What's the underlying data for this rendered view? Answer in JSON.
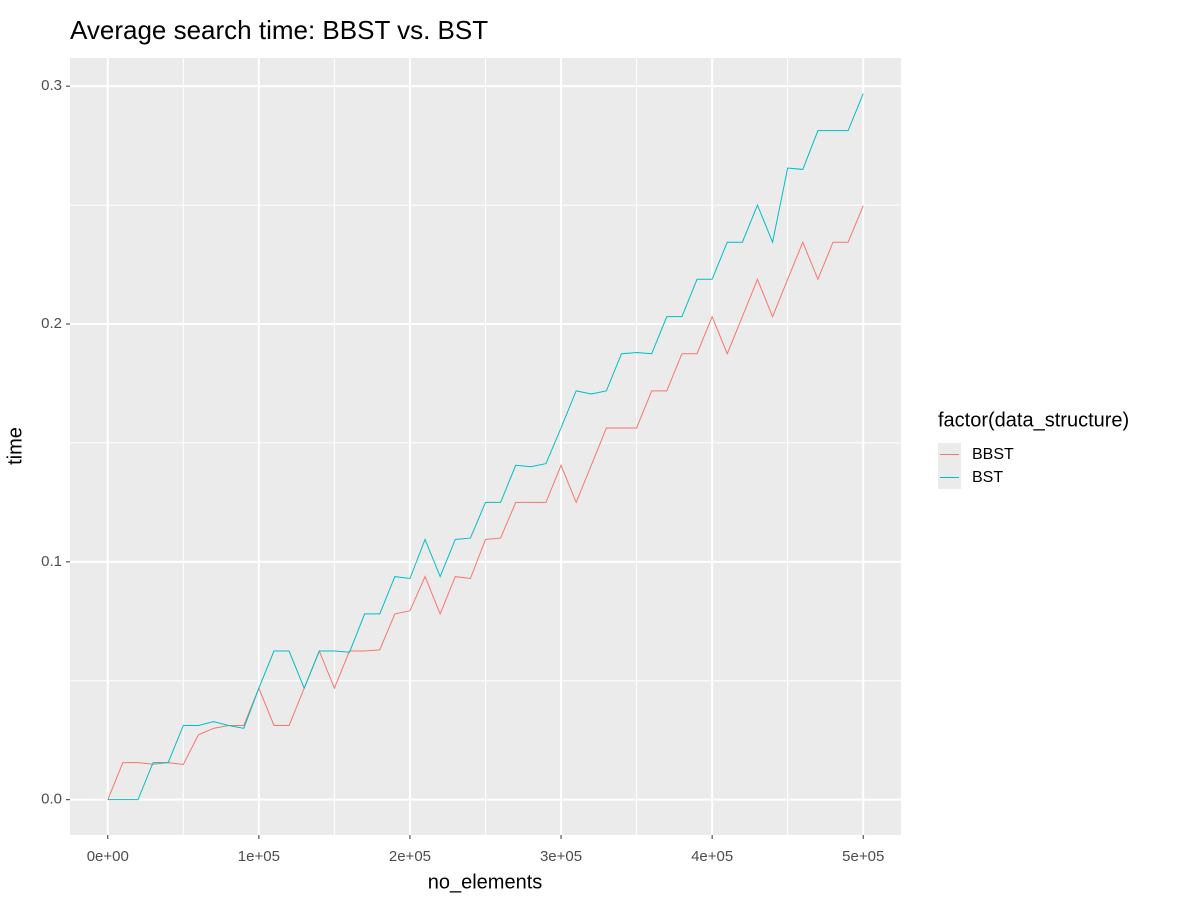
{
  "chart_data": {
    "type": "line",
    "title": "Average search time: BBST vs. BST",
    "x_label": "no_elements",
    "y_label": "time",
    "legend_title": "factor(data_structure)",
    "x": [
      0,
      10000,
      20000,
      30000,
      40000,
      50000,
      60000,
      70000,
      80000,
      90000,
      100000,
      110000,
      120000,
      130000,
      140000,
      150000,
      160000,
      170000,
      180000,
      190000,
      200000,
      210000,
      220000,
      230000,
      240000,
      250000,
      260000,
      270000,
      280000,
      290000,
      300000,
      310000,
      320000,
      330000,
      340000,
      350000,
      360000,
      370000,
      380000,
      390000,
      400000,
      410000,
      420000,
      430000,
      440000,
      450000,
      460000,
      470000,
      480000,
      490000,
      500000
    ],
    "series": [
      {
        "name": "BBST",
        "color": "#f8766d",
        "values": [
          0,
          0.0156,
          0.0156,
          0.0149,
          0.0156,
          0.0148,
          0.0273,
          0.03,
          0.0312,
          0.0312,
          0.0469,
          0.0312,
          0.0312,
          0.0469,
          0.0625,
          0.0469,
          0.0625,
          0.0625,
          0.063,
          0.0781,
          0.0794,
          0.0938,
          0.0781,
          0.0938,
          0.093,
          0.1094,
          0.11,
          0.125,
          0.125,
          0.125,
          0.1406,
          0.125,
          0.1406,
          0.1563,
          0.1563,
          0.1563,
          0.1719,
          0.1719,
          0.1875,
          0.1875,
          0.2031,
          0.1875,
          0.2031,
          0.2188,
          0.2031,
          0.2188,
          0.2344,
          0.2188,
          0.2344,
          0.2344,
          0.2497
        ]
      },
      {
        "name": "BST",
        "color": "#00bfc4",
        "values": [
          0,
          0,
          0,
          0.0156,
          0.0156,
          0.0312,
          0.0312,
          0.0328,
          0.0312,
          0.03,
          0.0469,
          0.0625,
          0.0625,
          0.0469,
          0.0625,
          0.0625,
          0.062,
          0.0781,
          0.0781,
          0.0938,
          0.093,
          0.1094,
          0.0938,
          0.1094,
          0.11,
          0.125,
          0.125,
          0.1406,
          0.14,
          0.1413,
          0.1563,
          0.1719,
          0.1706,
          0.1719,
          0.1875,
          0.188,
          0.1875,
          0.2031,
          0.2031,
          0.2188,
          0.2188,
          0.2344,
          0.2344,
          0.25,
          0.2344,
          0.2656,
          0.265,
          0.2813,
          0.2813,
          0.2813,
          0.2969
        ]
      }
    ],
    "xlim": [
      -25000,
      525000
    ],
    "xticks": [
      {
        "value": 0,
        "label": "0e+00"
      },
      {
        "value": 100000,
        "label": "1e+05"
      },
      {
        "value": 200000,
        "label": "2e+05"
      },
      {
        "value": 300000,
        "label": "3e+05"
      },
      {
        "value": 400000,
        "label": "4e+05"
      },
      {
        "value": 500000,
        "label": "5e+05"
      }
    ],
    "x_minor_ticks": [
      50000,
      150000,
      250000,
      350000,
      450000
    ],
    "ylim": [
      -0.01485,
      0.31185
    ],
    "yticks": [
      {
        "value": 0,
        "label": "0.0"
      },
      0.1,
      0.2,
      0.3
    ],
    "y_minor_ticks": [
      0.05,
      0.15,
      0.25
    ],
    "grid": true
  }
}
